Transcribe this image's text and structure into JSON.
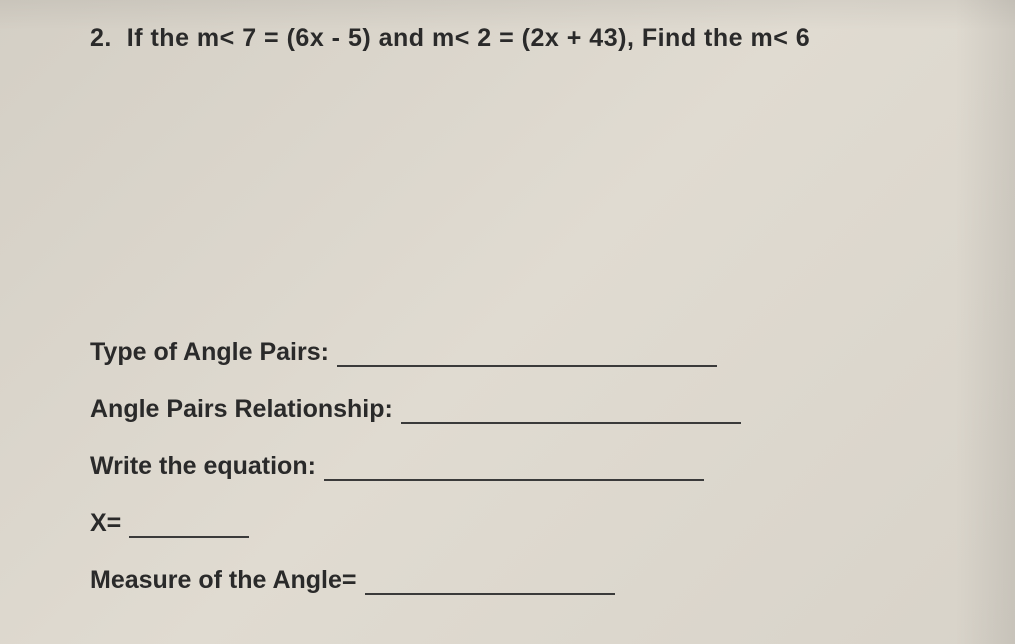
{
  "question": {
    "number": "2.",
    "text": "If the m< 7 = (6x - 5) and m< 2 = (2x + 43), Find the m< 6"
  },
  "answers": {
    "type_label": "Type of Angle Pairs:",
    "relationship_label": "Angle Pairs Relationship:",
    "equation_label": "Write the equation:",
    "x_label": "X=",
    "measure_label": "Measure of the Angle="
  },
  "style": {
    "text_color": "#2a2a2a",
    "background_base": "#d8d3c9",
    "font_family": "Comic Sans MS",
    "question_fontsize": 25,
    "answer_fontsize": 25
  }
}
